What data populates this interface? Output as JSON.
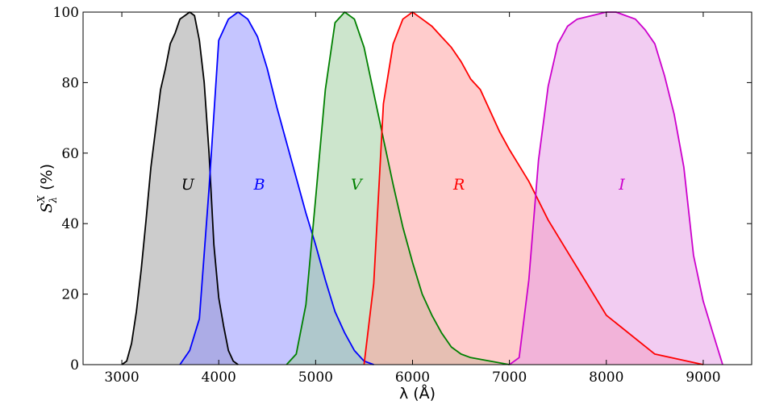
{
  "chart_data": {
    "type": "area",
    "title": "",
    "xlabel": "λ (Å)",
    "ylabel": "S",
    "ylabel_sup": "X",
    "ylabel_sub": "λ",
    "ylabel_unit": "(%)",
    "xlim": [
      2600,
      9500
    ],
    "ylim": [
      0,
      100
    ],
    "x_ticks": [
      3000,
      4000,
      5000,
      6000,
      7000,
      8000,
      9000
    ],
    "y_ticks": [
      0,
      20,
      40,
      60,
      80,
      100
    ],
    "grid": false,
    "series": [
      {
        "name": "U",
        "color": "#000000",
        "fill": "#999999",
        "label_at": [
          3680,
          51
        ],
        "points": [
          [
            3000,
            0
          ],
          [
            3050,
            1
          ],
          [
            3100,
            6
          ],
          [
            3150,
            15
          ],
          [
            3200,
            27
          ],
          [
            3250,
            41
          ],
          [
            3300,
            56
          ],
          [
            3350,
            67
          ],
          [
            3400,
            78
          ],
          [
            3450,
            84
          ],
          [
            3500,
            91
          ],
          [
            3550,
            94
          ],
          [
            3600,
            98
          ],
          [
            3650,
            99
          ],
          [
            3700,
            100
          ],
          [
            3750,
            99
          ],
          [
            3800,
            92
          ],
          [
            3850,
            80
          ],
          [
            3900,
            60
          ],
          [
            3950,
            34
          ],
          [
            4000,
            19
          ],
          [
            4050,
            11
          ],
          [
            4100,
            4
          ],
          [
            4150,
            1
          ],
          [
            4200,
            0
          ]
        ]
      },
      {
        "name": "B",
        "color": "#0000ff",
        "fill": "#8c8cff",
        "label_at": [
          4420,
          51
        ],
        "points": [
          [
            3600,
            0
          ],
          [
            3700,
            4
          ],
          [
            3800,
            13
          ],
          [
            3900,
            50
          ],
          [
            4000,
            92
          ],
          [
            4100,
            98
          ],
          [
            4200,
            100
          ],
          [
            4300,
            98
          ],
          [
            4400,
            93
          ],
          [
            4500,
            84
          ],
          [
            4600,
            73
          ],
          [
            4700,
            63
          ],
          [
            4800,
            53
          ],
          [
            4900,
            43
          ],
          [
            5000,
            34
          ],
          [
            5100,
            24
          ],
          [
            5200,
            15
          ],
          [
            5300,
            9
          ],
          [
            5400,
            4
          ],
          [
            5500,
            1
          ],
          [
            5600,
            0
          ]
        ]
      },
      {
        "name": "V",
        "color": "#008000",
        "fill": "#99cc99",
        "label_at": [
          5420,
          51
        ],
        "points": [
          [
            4700,
            0
          ],
          [
            4800,
            3
          ],
          [
            4900,
            17
          ],
          [
            5000,
            47
          ],
          [
            5100,
            78
          ],
          [
            5200,
            97
          ],
          [
            5300,
            100
          ],
          [
            5400,
            98
          ],
          [
            5500,
            90
          ],
          [
            5600,
            77
          ],
          [
            5700,
            64
          ],
          [
            5800,
            51
          ],
          [
            5900,
            39
          ],
          [
            6000,
            29
          ],
          [
            6100,
            20
          ],
          [
            6200,
            14
          ],
          [
            6300,
            9
          ],
          [
            6400,
            5
          ],
          [
            6500,
            3
          ],
          [
            6600,
            2
          ],
          [
            6800,
            1
          ],
          [
            7000,
            0
          ]
        ]
      },
      {
        "name": "R",
        "color": "#ff0000",
        "fill": "#ff9999",
        "label_at": [
          6480,
          51
        ],
        "points": [
          [
            5500,
            0
          ],
          [
            5600,
            23
          ],
          [
            5700,
            74
          ],
          [
            5800,
            91
          ],
          [
            5900,
            98
          ],
          [
            6000,
            100
          ],
          [
            6100,
            98
          ],
          [
            6200,
            96
          ],
          [
            6300,
            93
          ],
          [
            6400,
            90
          ],
          [
            6500,
            86
          ],
          [
            6600,
            81
          ],
          [
            6700,
            78
          ],
          [
            6800,
            72
          ],
          [
            6900,
            66
          ],
          [
            7000,
            61
          ],
          [
            7200,
            52
          ],
          [
            7400,
            41
          ],
          [
            7600,
            32
          ],
          [
            7800,
            23
          ],
          [
            8000,
            14
          ],
          [
            8500,
            3
          ],
          [
            9000,
            0
          ]
        ]
      },
      {
        "name": "I",
        "color": "#cc00cc",
        "fill": "#e699e6",
        "label_at": [
          8160,
          51
        ],
        "points": [
          [
            7000,
            0
          ],
          [
            7100,
            2
          ],
          [
            7200,
            24
          ],
          [
            7300,
            58
          ],
          [
            7400,
            79
          ],
          [
            7500,
            91
          ],
          [
            7600,
            96
          ],
          [
            7700,
            98
          ],
          [
            8000,
            100
          ],
          [
            8100,
            100
          ],
          [
            8200,
            99
          ],
          [
            8300,
            98
          ],
          [
            8400,
            95
          ],
          [
            8500,
            91
          ],
          [
            8600,
            82
          ],
          [
            8700,
            71
          ],
          [
            8800,
            56
          ],
          [
            8900,
            31
          ],
          [
            9000,
            18
          ],
          [
            9100,
            9
          ],
          [
            9200,
            0
          ]
        ]
      }
    ]
  }
}
